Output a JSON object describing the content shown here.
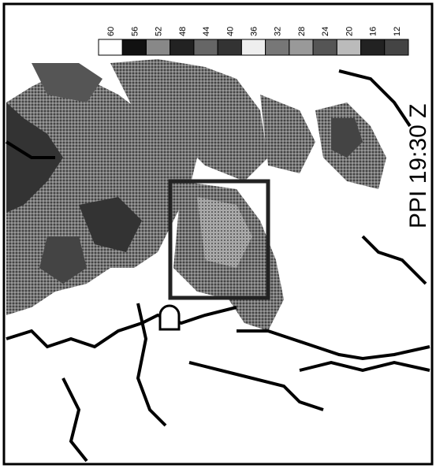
{
  "title": "PPI 19:30 Z",
  "legend": {
    "labels": [
      "60",
      "56",
      "52",
      "48",
      "44",
      "40",
      "36",
      "32",
      "28",
      "24",
      "20",
      "16",
      "12"
    ]
  }
}
